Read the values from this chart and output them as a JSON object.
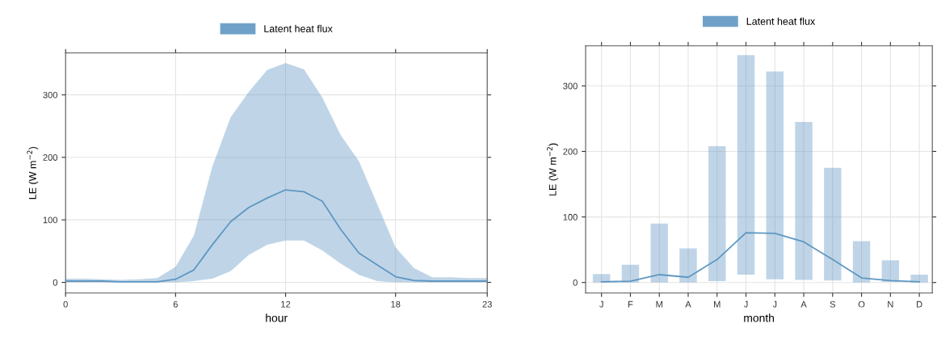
{
  "chart_data": [
    {
      "type": "line",
      "xlabel": "hour",
      "ylabel": "LE (W m$^{−2}$)",
      "x": [
        0,
        1,
        2,
        3,
        4,
        5,
        6,
        7,
        8,
        9,
        10,
        11,
        12,
        13,
        14,
        15,
        16,
        17,
        18,
        19,
        20,
        21,
        22,
        23
      ],
      "xlim": [
        0,
        23
      ],
      "xticks": [
        0,
        6,
        12,
        18,
        23
      ],
      "ylim": [
        -17,
        367
      ],
      "yticks": [
        0,
        100,
        200,
        300
      ],
      "grid": true,
      "legend": "top",
      "series": [
        {
          "name": "Latent heat flux",
          "color": "#5f97c2",
          "values": [
            2,
            2,
            2,
            1,
            1,
            1,
            5,
            20,
            60,
            97,
            120,
            135,
            148,
            145,
            130,
            85,
            47,
            28,
            9,
            3,
            2,
            2,
            2,
            2
          ],
          "lower": [
            0,
            0,
            0,
            0,
            0,
            0,
            0,
            2,
            6,
            18,
            44,
            60,
            67,
            67,
            51,
            30,
            12,
            2,
            0,
            0,
            0,
            0,
            0,
            0
          ],
          "upper": [
            6,
            6,
            5,
            4,
            5,
            7,
            25,
            75,
            185,
            264,
            305,
            340,
            351,
            341,
            296,
            236,
            194,
            125,
            56,
            23,
            8,
            8,
            7,
            7
          ]
        }
      ]
    },
    {
      "type": "bar",
      "xlabel": "month",
      "ylabel": "LE (W m$^{−2}$)",
      "categories": [
        "J",
        "F",
        "M",
        "A",
        "M",
        "J",
        "J",
        "A",
        "S",
        "O",
        "N",
        "D"
      ],
      "ylim": [
        -16,
        361
      ],
      "yticks": [
        0,
        100,
        200,
        300
      ],
      "grid": true,
      "legend": "top",
      "series": [
        {
          "type": "bar",
          "name": "Latent heat flux",
          "color": "#5f97c2",
          "base": [
            0,
            0,
            0,
            0,
            2,
            12,
            5,
            4,
            3,
            0,
            1,
            0
          ],
          "values": [
            13,
            27,
            90,
            52,
            206,
            335,
            317,
            241,
            172,
            63,
            33,
            12
          ]
        },
        {
          "type": "line",
          "color": "#5f97c2",
          "values": [
            1,
            2,
            12,
            8,
            35,
            76,
            75,
            62,
            35,
            7,
            3,
            1
          ]
        }
      ]
    }
  ]
}
